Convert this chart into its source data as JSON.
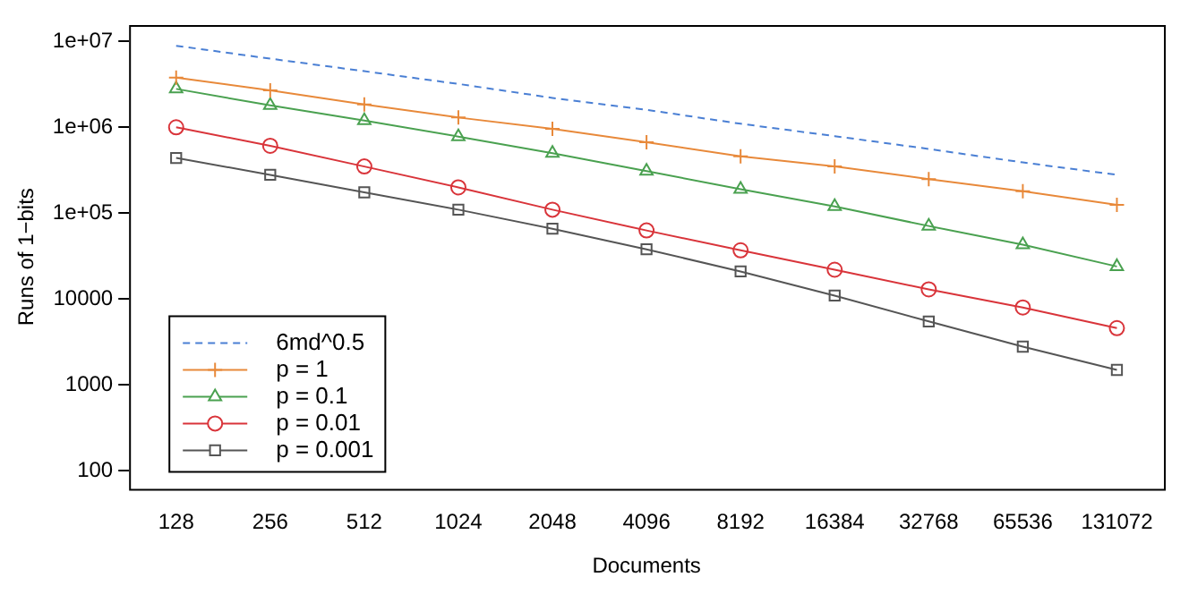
{
  "chart_data": {
    "type": "line",
    "xlabel": "Documents",
    "ylabel": "Runs of 1−bits",
    "categories": [
      "128",
      "256",
      "512",
      "1024",
      "2048",
      "4096",
      "8192",
      "16384",
      "32768",
      "65536",
      "131072"
    ],
    "log": "y",
    "ylim": [
      62,
      15500000
    ],
    "yticks": [
      100,
      1000,
      10000,
      {
        "value": 100000,
        "label": "1e+05"
      },
      {
        "value": 1000000,
        "label": "1e+06"
      },
      {
        "value": 10000000,
        "label": "1e+07"
      }
    ],
    "grid": false,
    "legend": "bottom left",
    "series": [
      {
        "name": "6md^0.5",
        "color": "#4a7fd4",
        "marker": "none",
        "line_style": "dashed",
        "values": [
          8900000,
          6300000,
          4500000,
          3200000,
          2200000,
          1600000,
          1100000,
          790000,
          560000,
          390000,
          280000
        ]
      },
      {
        "name": "p = 1",
        "color": "#e8893a",
        "marker": "cross",
        "line_style": "solid",
        "values": [
          3800000,
          2700000,
          1850000,
          1300000,
          960000,
          670000,
          460000,
          350000,
          250000,
          180000,
          125000
        ]
      },
      {
        "name": "p = 0.1",
        "color": "#4aa150",
        "marker": "triangle",
        "line_style": "solid",
        "values": [
          2800000,
          1800000,
          1200000,
          780000,
          500000,
          310000,
          190000,
          120000,
          71000,
          43000,
          24000
        ]
      },
      {
        "name": "p = 0.01",
        "color": "#d9343a",
        "marker": "circle",
        "line_style": "solid",
        "values": [
          1000000,
          610000,
          350000,
          200000,
          110000,
          63000,
          37000,
          22000,
          13000,
          8000,
          4600
        ]
      },
      {
        "name": "p = 0.001",
        "color": "#555555",
        "marker": "square",
        "line_style": "solid",
        "values": [
          440000,
          280000,
          175000,
          110000,
          66000,
          38000,
          21000,
          11000,
          5500,
          2800,
          1500
        ]
      }
    ]
  }
}
